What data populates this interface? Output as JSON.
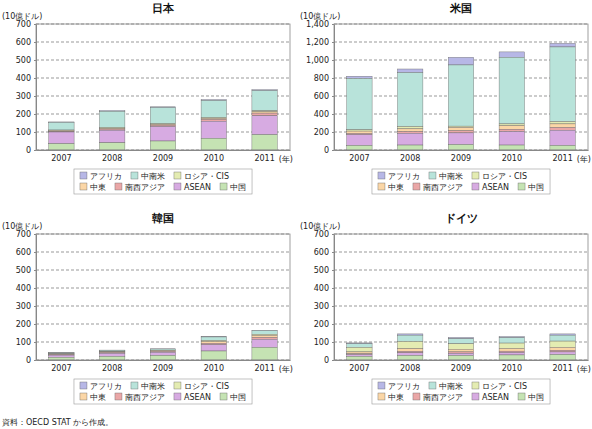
{
  "chart_data": [
    {
      "type": "bar",
      "title": "日本",
      "y_label": "(10億ドル)",
      "x_label": "(年)",
      "stacked": true,
      "grid": true,
      "legend": "bottom",
      "categories": [
        "2007",
        "2008",
        "2009",
        "2010",
        "2011"
      ],
      "ylim": [
        0,
        700
      ],
      "yticks": [
        0,
        100,
        200,
        300,
        400,
        500,
        600,
        700
      ],
      "series": [
        {
          "name": "アフリカ",
          "color": "#b7b7e6",
          "values": [
            3,
            4,
            4,
            5,
            5
          ]
        },
        {
          "name": "中南米",
          "color": "#b8e3da",
          "values": [
            42,
            90,
            90,
            95,
            112
          ]
        },
        {
          "name": "ロシア・CIS",
          "color": "#e4ecb2",
          "values": [
            3,
            4,
            3,
            4,
            5
          ]
        },
        {
          "name": "中東",
          "color": "#fbd6a6",
          "values": [
            4,
            5,
            5,
            6,
            8
          ]
        },
        {
          "name": "南西アジア",
          "color": "#eaa7a7",
          "values": [
            4,
            6,
            8,
            10,
            15
          ]
        },
        {
          "name": "ASEAN",
          "color": "#d7abe2",
          "values": [
            65,
            70,
            80,
            95,
            105
          ]
        },
        {
          "name": "中国",
          "color": "#c5e3b3",
          "values": [
            35,
            40,
            50,
            65,
            85
          ]
        }
      ]
    },
    {
      "type": "bar",
      "title": "米国",
      "y_label": "(10億ドル)",
      "x_label": "(年)",
      "stacked": true,
      "grid": true,
      "legend": "bottom",
      "categories": [
        "2007",
        "2008",
        "2009",
        "2010",
        "2011"
      ],
      "ylim": [
        0,
        1400
      ],
      "yticks": [
        0,
        200,
        400,
        600,
        800,
        {
          "value": 1000,
          "label": "1,000"
        },
        {
          "value": 1200,
          "label": "1,200"
        },
        {
          "value": 1400,
          "label": "1,400"
        }
      ],
      "series": [
        {
          "name": "アフリカ",
          "color": "#b7b7e6",
          "values": [
            25,
            40,
            85,
            60,
            40
          ]
        },
        {
          "name": "中南米",
          "color": "#b8e3da",
          "values": [
            570,
            600,
            680,
            740,
            830
          ]
        },
        {
          "name": "ロシア・CIS",
          "color": "#e4ecb2",
          "values": [
            15,
            25,
            15,
            20,
            25
          ]
        },
        {
          "name": "中東",
          "color": "#fbd6a6",
          "values": [
            25,
            30,
            35,
            40,
            40
          ]
        },
        {
          "name": "南西アジア",
          "color": "#eaa7a7",
          "values": [
            15,
            20,
            25,
            25,
            30
          ]
        },
        {
          "name": "ASEAN",
          "color": "#d7abe2",
          "values": [
            120,
            130,
            130,
            150,
            170
          ]
        },
        {
          "name": "中国",
          "color": "#c5e3b3",
          "values": [
            50,
            55,
            60,
            55,
            50
          ]
        }
      ]
    },
    {
      "type": "bar",
      "title": "韓国",
      "y_label": "(10億ドル)",
      "x_label": "(年)",
      "stacked": true,
      "grid": true,
      "legend": "bottom",
      "categories": [
        "2007",
        "2008",
        "2009",
        "2010",
        "2011"
      ],
      "ylim": [
        0,
        700
      ],
      "yticks": [
        0,
        100,
        200,
        300,
        400,
        500,
        600,
        700
      ],
      "series": [
        {
          "name": "アフリカ",
          "color": "#b7b7e6",
          "values": [
            1,
            1,
            1,
            2,
            2
          ]
        },
        {
          "name": "中南米",
          "color": "#b8e3da",
          "values": [
            4,
            6,
            7,
            20,
            20
          ]
        },
        {
          "name": "ロシア・CIS",
          "color": "#e4ecb2",
          "values": [
            2,
            3,
            2,
            5,
            6
          ]
        },
        {
          "name": "中東",
          "color": "#fbd6a6",
          "values": [
            3,
            4,
            5,
            10,
            12
          ]
        },
        {
          "name": "南西アジア",
          "color": "#eaa7a7",
          "values": [
            3,
            4,
            4,
            8,
            10
          ]
        },
        {
          "name": "ASEAN",
          "color": "#d7abe2",
          "values": [
            12,
            17,
            18,
            35,
            45
          ]
        },
        {
          "name": "中国",
          "color": "#c5e3b3",
          "values": [
            15,
            20,
            25,
            50,
            70
          ]
        }
      ]
    },
    {
      "type": "bar",
      "title": "ドイツ",
      "y_label": "(10億ドル)",
      "x_label": "(年)",
      "stacked": true,
      "grid": true,
      "legend": "bottom",
      "categories": [
        "2007",
        "2008",
        "2009",
        "2010",
        "2011"
      ],
      "ylim": [
        0,
        700
      ],
      "yticks": [
        0,
        100,
        200,
        300,
        400,
        500,
        600,
        700
      ],
      "series": [
        {
          "name": "アフリカ",
          "color": "#b7b7e6",
          "values": [
            5,
            7,
            7,
            6,
            7
          ]
        },
        {
          "name": "中南米",
          "color": "#b8e3da",
          "values": [
            20,
            35,
            28,
            30,
            33
          ]
        },
        {
          "name": "ロシア・CIS",
          "color": "#e4ecb2",
          "values": [
            25,
            40,
            30,
            30,
            35
          ]
        },
        {
          "name": "中東",
          "color": "#fbd6a6",
          "values": [
            10,
            15,
            15,
            15,
            16
          ]
        },
        {
          "name": "南西アジア",
          "color": "#eaa7a7",
          "values": [
            5,
            8,
            8,
            8,
            9
          ]
        },
        {
          "name": "ASEAN",
          "color": "#d7abe2",
          "values": [
            10,
            15,
            12,
            13,
            15
          ]
        },
        {
          "name": "中国",
          "color": "#c5e3b3",
          "values": [
            20,
            25,
            25,
            28,
            30
          ]
        }
      ]
    }
  ],
  "source": "資料：OECD STAT から作成。"
}
